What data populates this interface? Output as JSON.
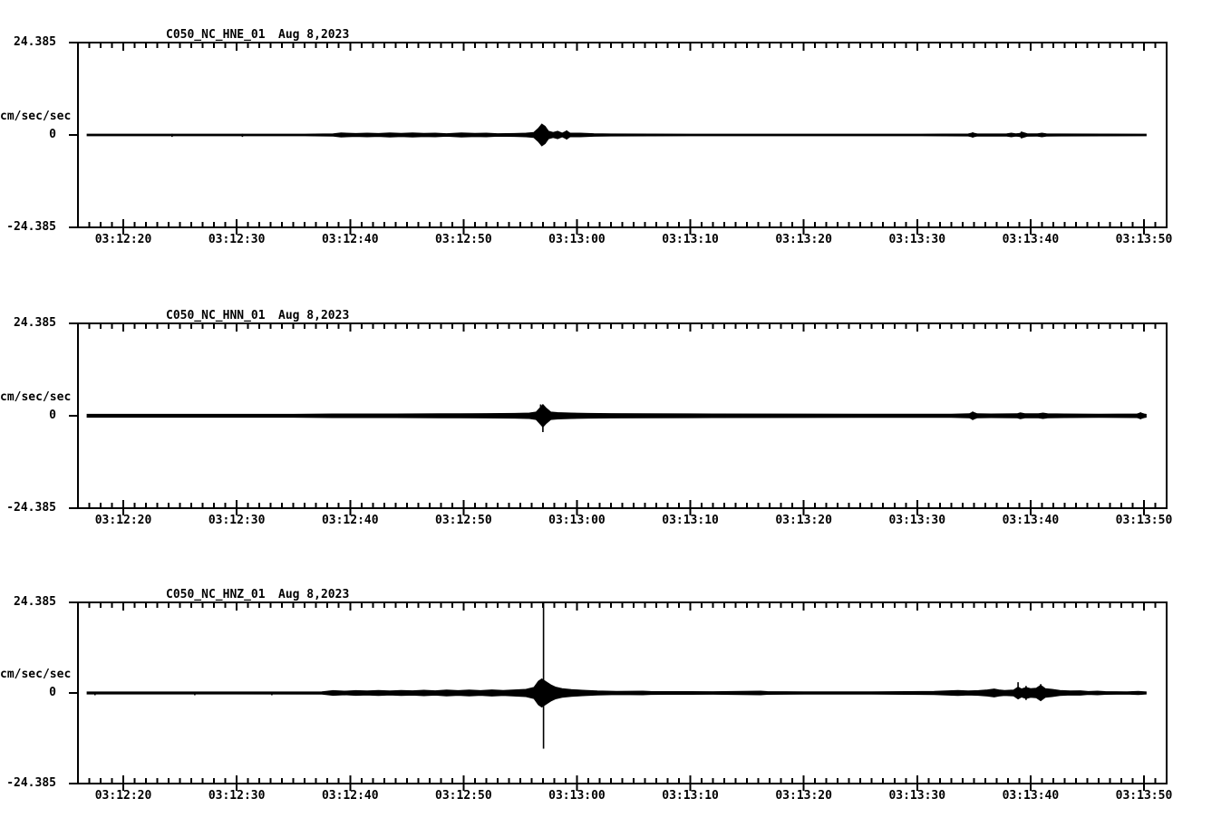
{
  "page": {
    "background": "#ffffff",
    "ink": "#000000"
  },
  "chart_data": [
    {
      "type": "line",
      "subtype": "seismogram-envelope",
      "title": "C050_NC_HNE_01",
      "date": "Aug 8,2023",
      "ylabel": "cm/sec/sec",
      "ymax_label": "24.385",
      "yzero_label": "0",
      "ymin_label": "-24.385",
      "ylim": [
        -24.385,
        24.385
      ],
      "x_axis_start_sec": 16,
      "x_axis_end_sec": 112,
      "trace_start_sec": 16.8,
      "trace_end_sec": 110.2,
      "minor_tick_step_sec": 1,
      "major_tick_step_sec": 10,
      "baseline_thickness": 2,
      "xticks": [
        {
          "sec": 20,
          "label": "03:12:20"
        },
        {
          "sec": 30,
          "label": "03:12:30"
        },
        {
          "sec": 40,
          "label": "03:12:40"
        },
        {
          "sec": 50,
          "label": "03:12:50"
        },
        {
          "sec": 60,
          "label": "03:13:00"
        },
        {
          "sec": 70,
          "label": "03:13:10"
        },
        {
          "sec": 80,
          "label": "03:13:20"
        },
        {
          "sec": 90,
          "label": "03:13:30"
        },
        {
          "sec": 100,
          "label": "03:13:40"
        },
        {
          "sec": 110,
          "label": "03:13:50"
        }
      ],
      "envelope": [
        [
          16.8,
          0.25
        ],
        [
          36,
          0.25
        ],
        [
          38.5,
          0.3
        ],
        [
          39.2,
          0.55
        ],
        [
          40.5,
          0.4
        ],
        [
          41.5,
          0.5
        ],
        [
          42.5,
          0.4
        ],
        [
          43.5,
          0.55
        ],
        [
          44.5,
          0.45
        ],
        [
          45.5,
          0.55
        ],
        [
          46.5,
          0.45
        ],
        [
          47.5,
          0.5
        ],
        [
          48.5,
          0.35
        ],
        [
          49.8,
          0.55
        ],
        [
          51,
          0.45
        ],
        [
          52,
          0.5
        ],
        [
          53,
          0.35
        ],
        [
          54.5,
          0.4
        ],
        [
          55.5,
          0.5
        ],
        [
          56.2,
          0.7
        ],
        [
          56.6,
          1.8
        ],
        [
          56.9,
          2.9
        ],
        [
          57.2,
          2.3
        ],
        [
          57.5,
          1.0
        ],
        [
          57.9,
          0.7
        ],
        [
          58.3,
          1.0
        ],
        [
          58.7,
          0.5
        ],
        [
          59.1,
          1.1
        ],
        [
          59.4,
          0.5
        ],
        [
          60.3,
          0.5
        ],
        [
          61.5,
          0.35
        ],
        [
          63,
          0.28
        ],
        [
          70,
          0.25
        ],
        [
          90,
          0.25
        ],
        [
          94.5,
          0.28
        ],
        [
          94.9,
          0.55
        ],
        [
          95.3,
          0.28
        ],
        [
          97.9,
          0.3
        ],
        [
          98.3,
          0.5
        ],
        [
          98.7,
          0.3
        ],
        [
          99.0,
          0.4
        ],
        [
          99.3,
          0.7
        ],
        [
          99.7,
          0.35
        ],
        [
          100.6,
          0.3
        ],
        [
          101.0,
          0.5
        ],
        [
          101.4,
          0.3
        ],
        [
          102.5,
          0.28
        ],
        [
          110.2,
          0.25
        ]
      ],
      "spikes": [
        [
          56.9,
          2.9,
          2.9
        ],
        [
          59.1,
          1.2,
          1.2
        ],
        [
          94.9,
          0.7,
          0.7
        ],
        [
          99.2,
          0.9,
          0.9
        ],
        [
          24.3,
          0.3,
          0.5
        ],
        [
          30.5,
          0.3,
          0.5
        ]
      ]
    },
    {
      "type": "line",
      "subtype": "seismogram-envelope",
      "title": "C050_NC_HNN_01",
      "date": "Aug 8,2023",
      "ylabel": "cm/sec/sec",
      "ymax_label": "24.385",
      "yzero_label": "0",
      "ymin_label": "-24.385",
      "ylim": [
        -24.385,
        24.385
      ],
      "x_axis_start_sec": 16,
      "x_axis_end_sec": 112,
      "trace_start_sec": 16.8,
      "trace_end_sec": 110.2,
      "minor_tick_step_sec": 1,
      "major_tick_step_sec": 10,
      "baseline_thickness": 3,
      "xticks": [
        {
          "sec": 20,
          "label": "03:12:20"
        },
        {
          "sec": 30,
          "label": "03:12:30"
        },
        {
          "sec": 40,
          "label": "03:12:40"
        },
        {
          "sec": 50,
          "label": "03:12:50"
        },
        {
          "sec": 60,
          "label": "03:13:00"
        },
        {
          "sec": 70,
          "label": "03:13:10"
        },
        {
          "sec": 80,
          "label": "03:13:20"
        },
        {
          "sec": 90,
          "label": "03:13:30"
        },
        {
          "sec": 100,
          "label": "03:13:40"
        },
        {
          "sec": 110,
          "label": "03:13:50"
        }
      ],
      "envelope": [
        [
          16.8,
          0.4
        ],
        [
          35,
          0.4
        ],
        [
          38.5,
          0.5
        ],
        [
          44,
          0.5
        ],
        [
          48,
          0.55
        ],
        [
          52,
          0.6
        ],
        [
          54.5,
          0.65
        ],
        [
          55.8,
          0.75
        ],
        [
          56.4,
          1.0
        ],
        [
          56.7,
          2.0
        ],
        [
          57.0,
          3.0
        ],
        [
          57.3,
          2.0
        ],
        [
          57.7,
          1.0
        ],
        [
          58.3,
          0.85
        ],
        [
          59.5,
          0.75
        ],
        [
          61,
          0.65
        ],
        [
          63,
          0.6
        ],
        [
          66,
          0.55
        ],
        [
          72,
          0.5
        ],
        [
          85,
          0.45
        ],
        [
          93,
          0.45
        ],
        [
          94.6,
          0.55
        ],
        [
          94.9,
          1.0
        ],
        [
          95.3,
          0.55
        ],
        [
          96.5,
          0.5
        ],
        [
          98.8,
          0.55
        ],
        [
          99.1,
          0.8
        ],
        [
          99.5,
          0.55
        ],
        [
          100.7,
          0.55
        ],
        [
          101.1,
          0.75
        ],
        [
          101.5,
          0.55
        ],
        [
          103,
          0.5
        ],
        [
          106,
          0.45
        ],
        [
          109.4,
          0.5
        ],
        [
          109.7,
          0.8
        ],
        [
          110.0,
          0.5
        ],
        [
          110.2,
          0.4
        ]
      ],
      "spikes": [
        [
          57.0,
          2.4,
          4.3
        ],
        [
          56.8,
          3.0,
          1.0
        ],
        [
          94.9,
          1.1,
          1.1
        ],
        [
          109.7,
          0.9,
          0.9
        ]
      ]
    },
    {
      "type": "line",
      "subtype": "seismogram-envelope",
      "title": "C050_NC_HNZ_01",
      "date": "Aug 8,2023",
      "ylabel": "cm/sec/sec",
      "ymax_label": "24.385",
      "yzero_label": "0",
      "ymin_label": "-24.385",
      "ylim": [
        -24.385,
        24.385
      ],
      "x_axis_start_sec": 16,
      "x_axis_end_sec": 112,
      "trace_start_sec": 16.8,
      "trace_end_sec": 110.2,
      "minor_tick_step_sec": 1,
      "major_tick_step_sec": 10,
      "baseline_thickness": 2,
      "xticks": [
        {
          "sec": 20,
          "label": "03:12:20"
        },
        {
          "sec": 30,
          "label": "03:12:30"
        },
        {
          "sec": 40,
          "label": "03:12:40"
        },
        {
          "sec": 50,
          "label": "03:12:50"
        },
        {
          "sec": 60,
          "label": "03:13:00"
        },
        {
          "sec": 70,
          "label": "03:13:10"
        },
        {
          "sec": 80,
          "label": "03:13:20"
        },
        {
          "sec": 90,
          "label": "03:13:30"
        },
        {
          "sec": 100,
          "label": "03:13:40"
        },
        {
          "sec": 110,
          "label": "03:13:50"
        }
      ],
      "envelope": [
        [
          16.8,
          0.3
        ],
        [
          30,
          0.3
        ],
        [
          37.5,
          0.35
        ],
        [
          38.5,
          0.65
        ],
        [
          39.5,
          0.5
        ],
        [
          40.5,
          0.65
        ],
        [
          41.5,
          0.55
        ],
        [
          42.5,
          0.7
        ],
        [
          43.5,
          0.55
        ],
        [
          44.5,
          0.7
        ],
        [
          45.5,
          0.6
        ],
        [
          46.5,
          0.75
        ],
        [
          47.5,
          0.6
        ],
        [
          48.5,
          0.8
        ],
        [
          49.5,
          0.65
        ],
        [
          50.5,
          0.8
        ],
        [
          51.5,
          0.65
        ],
        [
          52.5,
          0.85
        ],
        [
          53.5,
          0.7
        ],
        [
          54.5,
          0.85
        ],
        [
          55.5,
          1.0
        ],
        [
          56.2,
          1.5
        ],
        [
          56.6,
          3.2
        ],
        [
          56.9,
          3.8
        ],
        [
          57.3,
          3.0
        ],
        [
          57.7,
          2.2
        ],
        [
          58.1,
          1.6
        ],
        [
          58.7,
          1.2
        ],
        [
          59.5,
          0.95
        ],
        [
          60.5,
          0.75
        ],
        [
          61.8,
          0.55
        ],
        [
          63.5,
          0.45
        ],
        [
          65.8,
          0.5
        ],
        [
          66.5,
          0.42
        ],
        [
          68,
          0.38
        ],
        [
          72,
          0.36
        ],
        [
          76.2,
          0.5
        ],
        [
          76.8,
          0.38
        ],
        [
          80,
          0.35
        ],
        [
          86,
          0.35
        ],
        [
          91.5,
          0.45
        ],
        [
          92.8,
          0.6
        ],
        [
          93.6,
          0.7
        ],
        [
          94.5,
          0.55
        ],
        [
          95.4,
          0.65
        ],
        [
          96.2,
          0.85
        ],
        [
          96.8,
          1.1
        ],
        [
          97.2,
          0.85
        ],
        [
          97.7,
          0.7
        ],
        [
          98.5,
          0.8
        ],
        [
          98.9,
          1.6
        ],
        [
          99.2,
          1.1
        ],
        [
          99.6,
          1.5
        ],
        [
          100.0,
          1.2
        ],
        [
          100.5,
          1.3
        ],
        [
          100.9,
          2.1
        ],
        [
          101.3,
          1.2
        ],
        [
          101.9,
          1.0
        ],
        [
          102.6,
          0.7
        ],
        [
          103.5,
          0.55
        ],
        [
          104.4,
          0.6
        ],
        [
          105.1,
          0.42
        ],
        [
          105.9,
          0.5
        ],
        [
          106.6,
          0.38
        ],
        [
          108.5,
          0.35
        ],
        [
          109.5,
          0.45
        ],
        [
          110.2,
          0.3
        ]
      ],
      "spikes": [
        [
          57.05,
          24.3,
          15.0
        ],
        [
          98.9,
          2.9,
          1.6
        ],
        [
          100.9,
          2.4,
          2.1
        ],
        [
          99.6,
          1.9,
          1.9
        ],
        [
          17.5,
          0.2,
          0.6
        ],
        [
          26.3,
          0.2,
          0.6
        ],
        [
          33.1,
          0.2,
          0.6
        ]
      ]
    }
  ]
}
